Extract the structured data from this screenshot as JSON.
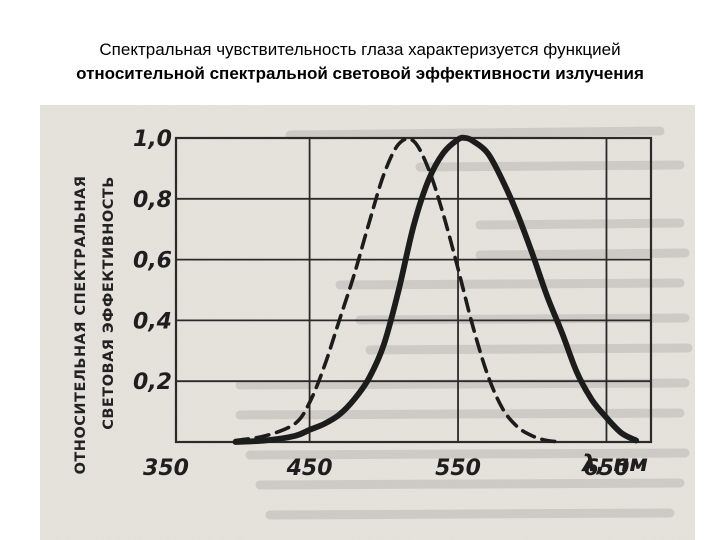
{
  "title": {
    "line1": "Спектральная чувствительность глаза характеризуется функцией",
    "line2": "относительной спектральной световой эффективности излучения"
  },
  "chart_data": {
    "type": "line",
    "ylabel_outer": "ОТНОСИТЕЛЬНАЯ СПЕКТРАЛЬНАЯ",
    "ylabel_inner": "СВЕТОВАЯ ЭФФЕКТИВНОСТЬ",
    "xlabel": "λ, нм",
    "xlim": [
      360,
      680
    ],
    "ylim": [
      0,
      1.0
    ],
    "x_ticks": [
      350,
      450,
      550,
      650
    ],
    "x_tick_labels": [
      "350",
      "450",
      "550",
      "650"
    ],
    "y_ticks": [
      0.2,
      0.4,
      0.6,
      0.8,
      1.0
    ],
    "y_tick_labels": [
      "0,2",
      "0,4",
      "0,6",
      "0,8",
      "1,0"
    ],
    "x_gridlines": [
      450,
      550,
      650
    ],
    "y_gridlines": [
      0.2,
      0.4,
      0.6,
      0.8
    ],
    "grid": true,
    "series": [
      {
        "style": "dashed",
        "x": [
          400,
          420,
          440,
          450,
          460,
          470,
          480,
          490,
          500,
          510,
          520,
          530,
          540,
          550,
          560,
          570,
          580,
          590,
          600,
          610,
          620
        ],
        "y": [
          0.005,
          0.02,
          0.06,
          0.13,
          0.25,
          0.4,
          0.55,
          0.72,
          0.88,
          0.98,
          0.99,
          0.9,
          0.75,
          0.57,
          0.38,
          0.22,
          0.11,
          0.05,
          0.02,
          0.005,
          0.0
        ]
      },
      {
        "style": "solid",
        "x": [
          400,
          420,
          440,
          450,
          460,
          470,
          480,
          490,
          500,
          510,
          520,
          530,
          540,
          550,
          555,
          560,
          570,
          580,
          590,
          600,
          610,
          620,
          630,
          640,
          650,
          660,
          670
        ],
        "y": [
          0.0,
          0.005,
          0.02,
          0.04,
          0.06,
          0.09,
          0.14,
          0.21,
          0.32,
          0.5,
          0.71,
          0.86,
          0.95,
          0.995,
          1.0,
          0.99,
          0.95,
          0.86,
          0.75,
          0.62,
          0.48,
          0.36,
          0.23,
          0.14,
          0.08,
          0.03,
          0.005
        ]
      }
    ]
  }
}
